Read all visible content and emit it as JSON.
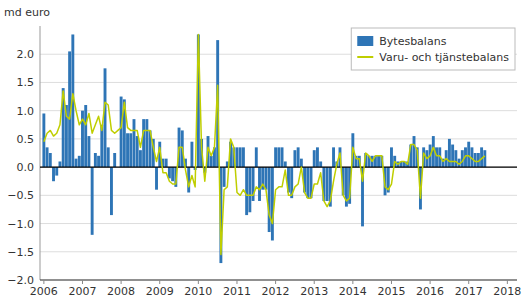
{
  "chart_data": {
    "type": "bar",
    "ylabel": "md euro",
    "x": [
      2006,
      2006.083333,
      2006.166667,
      2006.25,
      2006.333333,
      2006.416667,
      2006.5,
      2006.583333,
      2006.666667,
      2006.75,
      2006.833333,
      2006.916667,
      2007,
      2007.083333,
      2007.166667,
      2007.25,
      2007.333333,
      2007.416667,
      2007.5,
      2007.583333,
      2007.666667,
      2007.75,
      2007.833333,
      2007.916667,
      2008,
      2008.083333,
      2008.166667,
      2008.25,
      2008.333333,
      2008.416667,
      2008.5,
      2008.583333,
      2008.666667,
      2008.75,
      2008.833333,
      2008.916667,
      2009,
      2009.083333,
      2009.166667,
      2009.25,
      2009.333333,
      2009.416667,
      2009.5,
      2009.583333,
      2009.666667,
      2009.75,
      2009.833333,
      2009.916667,
      2010,
      2010.083333,
      2010.166667,
      2010.25,
      2010.333333,
      2010.416667,
      2010.5,
      2010.583333,
      2010.666667,
      2010.75,
      2010.833333,
      2010.916667,
      2011,
      2011.083333,
      2011.166667,
      2011.25,
      2011.333333,
      2011.416667,
      2011.5,
      2011.583333,
      2011.666667,
      2011.75,
      2011.833333,
      2011.916667,
      2012,
      2012.083333,
      2012.166667,
      2012.25,
      2012.333333,
      2012.416667,
      2012.5,
      2012.583333,
      2012.666667,
      2012.75,
      2012.833333,
      2012.916667,
      2013,
      2013.083333,
      2013.166667,
      2013.25,
      2013.333333,
      2013.416667,
      2013.5,
      2013.583333,
      2013.666667,
      2013.75,
      2013.833333,
      2013.916667,
      2014,
      2014.083333,
      2014.166667,
      2014.25,
      2014.333333,
      2014.416667,
      2014.5,
      2014.583333,
      2014.666667,
      2014.75,
      2014.833333,
      2014.916667,
      2015,
      2015.083333,
      2015.166667,
      2015.25,
      2015.333333,
      2015.416667,
      2015.5,
      2015.583333,
      2015.666667,
      2015.75,
      2015.833333,
      2015.916667,
      2016,
      2016.083333,
      2016.166667,
      2016.25,
      2016.333333,
      2016.416667,
      2016.5,
      2016.583333,
      2016.666667,
      2016.75,
      2016.833333,
      2016.916667,
      2017,
      2017.083333,
      2017.166667,
      2017.25,
      2017.333333,
      2017.416667
    ],
    "series": [
      {
        "name": "Bytesbalans",
        "type": "bar",
        "color": "#2E75B6",
        "values": [
          0.95,
          0.35,
          0.25,
          -0.25,
          -0.15,
          0.1,
          1.4,
          1.1,
          2.05,
          2.35,
          0.15,
          0.2,
          1.0,
          1.1,
          0.55,
          -1.2,
          0.25,
          0.2,
          0.75,
          1.75,
          0.35,
          -0.85,
          0.25,
          0.0,
          1.25,
          1.2,
          0.6,
          0.6,
          0.85,
          0.55,
          0.3,
          0.85,
          0.85,
          0.65,
          0.5,
          -0.4,
          0.45,
          0.15,
          0.15,
          -0.2,
          -0.25,
          -0.35,
          0.7,
          0.65,
          0.15,
          -0.45,
          0.45,
          -0.05,
          2.35,
          0.5,
          -0.1,
          0.55,
          0.2,
          0.35,
          2.25,
          -1.7,
          -0.35,
          0.1,
          0.45,
          0.35,
          0.35,
          0.35,
          0.35,
          -0.85,
          -0.8,
          -0.6,
          0.35,
          -0.6,
          -0.4,
          -0.4,
          -1.15,
          -1.3,
          0.35,
          0.35,
          0.35,
          0.1,
          -0.45,
          -0.55,
          0.3,
          0.35,
          0.15,
          -0.45,
          -0.55,
          -0.55,
          0.3,
          0.35,
          0.1,
          -0.6,
          -0.6,
          -0.7,
          0.35,
          0.1,
          0.35,
          -0.5,
          -0.7,
          -0.65,
          0.6,
          0.2,
          0.2,
          -1.05,
          0.25,
          0.2,
          0.2,
          0.2,
          0.2,
          0.2,
          -0.5,
          -0.45,
          0.35,
          0.2,
          0.1,
          0.1,
          0.1,
          0.1,
          0.4,
          0.55,
          0.35,
          -0.75,
          0.35,
          0.3,
          0.4,
          0.55,
          0.35,
          0.35,
          0.15,
          0.3,
          0.5,
          0.4,
          0.3,
          0.15,
          0.3,
          0.35,
          0.45,
          0.35,
          0.25,
          0.25,
          0.35,
          0.3
        ]
      },
      {
        "name": "Varu- och tjänstebalans",
        "type": "line",
        "color": "#BFCE00",
        "values": [
          0.45,
          0.6,
          0.65,
          0.55,
          0.6,
          0.75,
          1.35,
          0.9,
          0.85,
          1.3,
          1.0,
          0.75,
          0.85,
          0.75,
          0.95,
          0.6,
          0.75,
          0.9,
          0.65,
          1.15,
          1.1,
          0.65,
          0.6,
          0.65,
          0.7,
          1.15,
          0.7,
          0.65,
          0.65,
          0.65,
          0.35,
          0.65,
          0.65,
          0.65,
          0.35,
          0.1,
          0.35,
          -0.1,
          -0.1,
          -0.25,
          -0.3,
          -0.3,
          0.35,
          0.35,
          -0.05,
          -0.35,
          -0.15,
          -0.35,
          2.35,
          0.35,
          -0.25,
          0.35,
          0.2,
          0.35,
          1.45,
          -1.55,
          -0.4,
          -0.35,
          0.5,
          0.35,
          -0.45,
          -0.5,
          -0.4,
          -0.5,
          -0.5,
          -0.5,
          -0.35,
          -0.4,
          -0.3,
          -0.4,
          -0.85,
          -1.0,
          -0.4,
          -0.35,
          -0.35,
          -0.05,
          -0.5,
          -0.5,
          -0.35,
          -0.3,
          0.0,
          -0.45,
          -0.55,
          -0.55,
          -0.3,
          -0.3,
          -0.1,
          -0.6,
          -0.7,
          -0.6,
          -0.25,
          0.05,
          0.25,
          -0.5,
          -0.6,
          -0.55,
          0.35,
          0.15,
          0.15,
          -0.25,
          0.25,
          0.2,
          0.1,
          0.2,
          0.2,
          0.2,
          -0.35,
          -0.4,
          -0.3,
          0.1,
          0.05,
          0.1,
          0.1,
          0.05,
          0.4,
          0.4,
          0.3,
          -0.55,
          0.25,
          0.15,
          0.2,
          0.35,
          0.2,
          0.2,
          0.1,
          0.15,
          0.1,
          0.1,
          0.1,
          0.05,
          0.1,
          0.2,
          0.2,
          0.15,
          0.1,
          0.1,
          0.15,
          0.2
        ]
      }
    ],
    "xlim": [
      2005.9,
      2018.25
    ],
    "xticks": [
      2006,
      2007,
      2008,
      2009,
      2010,
      2011,
      2012,
      2013,
      2014,
      2015,
      2016,
      2017,
      2018
    ],
    "ylim": [
      -2.0,
      2.5
    ],
    "yticks": [
      {
        "value": -2.0,
        "label": "−2.0"
      },
      {
        "value": -1.5,
        "label": "−1.5"
      },
      {
        "value": -1.0,
        "label": "−1.0"
      },
      {
        "value": -0.5,
        "label": "−0.5"
      },
      {
        "value": 0.0,
        "label": "0.0"
      },
      0.5,
      {
        "value": 1.0,
        "label": "1.0"
      },
      1.5,
      {
        "value": 2.0,
        "label": "2.0"
      }
    ],
    "grid": true,
    "legend": "upper right"
  }
}
